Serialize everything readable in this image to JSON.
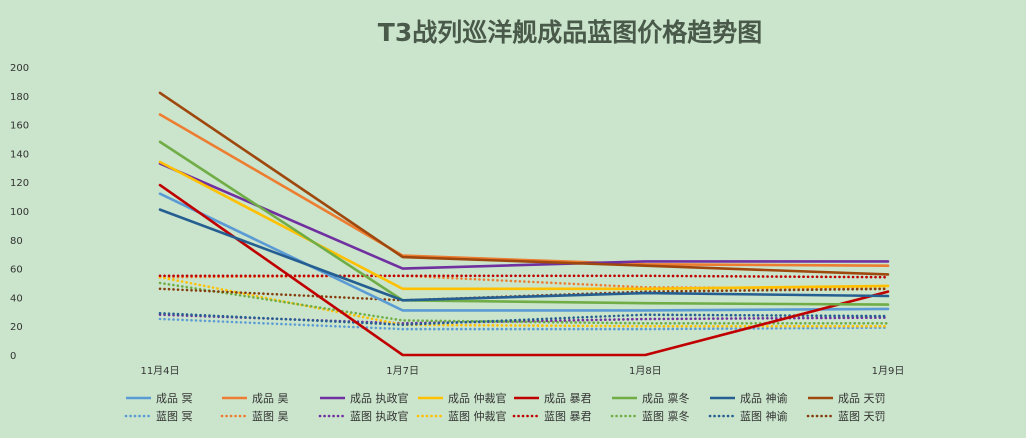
{
  "chart_data": {
    "type": "line",
    "title": "T3战列巡洋舰成品蓝图价格趋势图",
    "categories": [
      "11月4日",
      "1月7日",
      "1月8日",
      "1月9日"
    ],
    "ylim": [
      0,
      200
    ],
    "yticks": [
      0,
      20,
      40,
      60,
      80,
      100,
      120,
      140,
      160,
      180,
      200
    ],
    "grid": false,
    "legend_position": "bottom",
    "series": [
      {
        "name": "成品 冥",
        "style": "solid",
        "color": "#5b9bd5",
        "values": [
          112,
          31,
          31,
          32
        ]
      },
      {
        "name": "成品 昊",
        "style": "solid",
        "color": "#ed7d31",
        "values": [
          167,
          69,
          63,
          62
        ]
      },
      {
        "name": "成品 执政官",
        "style": "solid",
        "color": "#7030a0",
        "values": [
          133,
          60,
          65,
          65
        ]
      },
      {
        "name": "成品 仲裁官",
        "style": "solid",
        "color": "#ffc000",
        "values": [
          134,
          46,
          46,
          48
        ]
      },
      {
        "name": "成品 暴君",
        "style": "solid",
        "color": "#c00000",
        "values": [
          118,
          0,
          0,
          44
        ]
      },
      {
        "name": "成品 禀冬",
        "style": "solid",
        "color": "#70ad47",
        "values": [
          148,
          38,
          36,
          35
        ]
      },
      {
        "name": "成品 神谕",
        "style": "solid",
        "color": "#255e91",
        "values": [
          101,
          38,
          43,
          41
        ]
      },
      {
        "name": "成品 天罚",
        "style": "solid",
        "color": "#9e480e",
        "values": [
          182,
          68,
          62,
          56
        ]
      },
      {
        "name": "蓝图 冥",
        "style": "dotted",
        "color": "#5b9bd5",
        "values": [
          25,
          18,
          18,
          19
        ]
      },
      {
        "name": "蓝图 昊",
        "style": "dotted",
        "color": "#ed7d31",
        "values": [
          54,
          55,
          47,
          46
        ]
      },
      {
        "name": "蓝图 执政官",
        "style": "dotted",
        "color": "#7030a0",
        "values": [
          28,
          22,
          25,
          26
        ]
      },
      {
        "name": "蓝图 仲裁官",
        "style": "dotted",
        "color": "#ffc000",
        "values": [
          54,
          21,
          20,
          20
        ]
      },
      {
        "name": "蓝图 暴君",
        "style": "dotted",
        "color": "#c00000",
        "values": [
          55,
          55,
          55,
          54
        ]
      },
      {
        "name": "蓝图 禀冬",
        "style": "dotted",
        "color": "#70ad47",
        "values": [
          50,
          24,
          22,
          22
        ]
      },
      {
        "name": "蓝图 神谕",
        "style": "dotted",
        "color": "#255e91",
        "values": [
          29,
          21,
          28,
          27
        ]
      },
      {
        "name": "蓝图 天罚",
        "style": "dotted",
        "color": "#843c0c",
        "values": [
          46,
          38,
          44,
          46
        ]
      }
    ]
  }
}
